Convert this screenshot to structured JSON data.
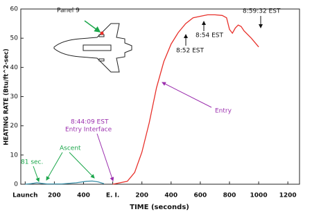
{
  "chart_data": {
    "type": "line",
    "x_label": "TIME (seconds)",
    "y_label": "HEATING RATE (Btu/ft^2-sec)",
    "xlim": [
      -30,
      1880
    ],
    "xticks": [
      {
        "value": 0,
        "label": "Launch"
      },
      200,
      400,
      {
        "value": 600,
        "label": "E. I."
      },
      {
        "value": 800,
        "label": "200"
      },
      {
        "value": 1000,
        "label": "400"
      },
      {
        "value": 1200,
        "label": "600"
      },
      {
        "value": 1400,
        "label": "800"
      },
      {
        "value": 1600,
        "label": "1000"
      },
      {
        "value": 1800,
        "label": "1200"
      }
    ],
    "ylim": [
      0,
      60
    ],
    "yticks": [
      0,
      10,
      20,
      30,
      40,
      50,
      60
    ],
    "grid": false,
    "series": [
      {
        "name": "Ascent",
        "color": "#3a8fa8",
        "x": [
          0,
          40,
          81,
          110,
          150,
          250,
          350,
          420,
          460,
          500,
          540
        ],
        "values": [
          0,
          0.2,
          0.5,
          0.3,
          0.1,
          0.1,
          0.5,
          1.0,
          1.1,
          0.8,
          0.2
        ]
      },
      {
        "name": "Entry",
        "color": "#e8302a",
        "x": [
          600,
          700,
          750,
          800,
          850,
          900,
          950,
          1000,
          1050,
          1100,
          1150,
          1200,
          1250,
          1300,
          1350,
          1380,
          1400,
          1420,
          1440,
          1460,
          1480,
          1500,
          1550,
          1600
        ],
        "values": [
          0,
          1,
          4,
          11,
          21,
          33,
          42,
          48,
          52,
          55,
          57,
          57.5,
          58,
          58,
          57.8,
          57,
          53,
          51.7,
          53.5,
          54.5,
          54,
          52.5,
          50,
          47
        ]
      }
    ],
    "annotations": {
      "panel": "Panel 9",
      "launch_time": "81 sec.",
      "entry_time": "8:44:09 EST",
      "entry_interface": "Entry Interface",
      "t1": "8:52 EST",
      "t2": "8:54 EST",
      "t3": "8:59:32 EST"
    }
  }
}
